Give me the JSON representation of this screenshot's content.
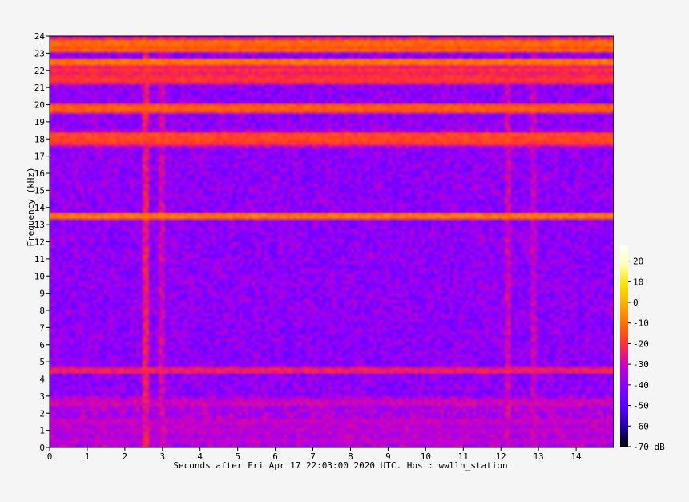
{
  "chart_data": {
    "type": "heatmap",
    "title": "",
    "xlabel": "Seconds after Fri Apr 17 22:03:00 2020 UTC. Host: wwlln_station",
    "ylabel": "Frequency (kHz)",
    "x_ticks": [
      0,
      1,
      2,
      3,
      4,
      5,
      6,
      7,
      8,
      9,
      10,
      11,
      12,
      13,
      14
    ],
    "y_ticks": [
      0,
      1,
      2,
      3,
      4,
      5,
      6,
      7,
      8,
      9,
      10,
      11,
      12,
      13,
      14,
      15,
      16,
      17,
      18,
      19,
      20,
      21,
      22,
      23,
      24
    ],
    "xlim": [
      0,
      15
    ],
    "ylim": [
      0,
      24
    ],
    "colorbar": {
      "unit": "dB",
      "ticks": [
        20,
        10,
        0,
        -10,
        -20,
        -30,
        -40,
        -50,
        -60,
        -70
      ],
      "range": [
        -70,
        28
      ],
      "colormap": [
        "#000000",
        "#2200aa",
        "#5500ff",
        "#8a00ff",
        "#c800c8",
        "#ff2a3c",
        "#ff6a00",
        "#ffaa00",
        "#ffe000",
        "#ffffb0",
        "#ffffff"
      ]
    },
    "background_level_db": -40,
    "horizontal_bands_khz": [
      {
        "freq": 23.6,
        "level": -10
      },
      {
        "freq": 23.2,
        "level": -12
      },
      {
        "freq": 22.5,
        "level": -8
      },
      {
        "freq": 22.0,
        "level": -20
      },
      {
        "freq": 21.5,
        "level": -18
      },
      {
        "freq": 19.8,
        "level": -12
      },
      {
        "freq": 18.2,
        "level": -15
      },
      {
        "freq": 17.9,
        "level": -17
      },
      {
        "freq": 13.5,
        "level": -8
      },
      {
        "freq": 4.5,
        "level": -22
      },
      {
        "freq": 2.6,
        "level": -28
      },
      {
        "freq": 1.5,
        "level": -30
      },
      {
        "freq": 1.0,
        "level": -32
      },
      {
        "freq": 0.4,
        "level": -32
      }
    ],
    "vertical_features_s": [
      {
        "time": 2.55,
        "level": -25
      },
      {
        "time": 2.95,
        "level": -30
      },
      {
        "time": 12.2,
        "level": -30
      },
      {
        "time": 12.85,
        "level": -32
      }
    ]
  }
}
